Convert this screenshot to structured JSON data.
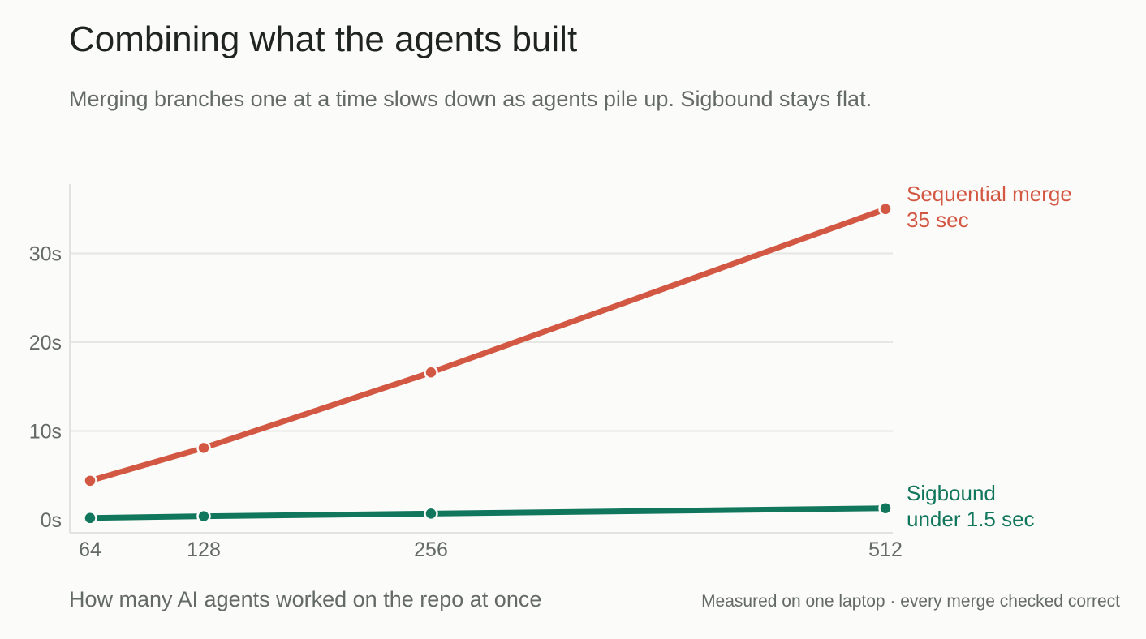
{
  "header": {
    "title": "Combining what the agents built",
    "subtitle": "Merging branches one at a time slows down as agents pile up. Sigbound stays flat."
  },
  "footer": {
    "xlabel": "How many AI agents worked on the repo at once",
    "note": "Measured on one laptop · every merge checked correct"
  },
  "chart_data": {
    "type": "line",
    "title": "Combining what the agents built",
    "subtitle": "Merging branches one at a time slows down as agents pile up. Sigbound stays flat.",
    "xlabel": "How many AI agents worked on the repo at once",
    "ylabel": "",
    "x": [
      64,
      128,
      256,
      512
    ],
    "x_ticks": [
      {
        "value": 64,
        "label": "64"
      },
      {
        "value": 128,
        "label": "128"
      },
      {
        "value": 256,
        "label": "256"
      },
      {
        "value": 512,
        "label": "512"
      }
    ],
    "y_ticks": [
      {
        "value": 0,
        "label": "0s"
      },
      {
        "value": 10,
        "label": "10s"
      },
      {
        "value": 20,
        "label": "20s"
      },
      {
        "value": 30,
        "label": "30s"
      }
    ],
    "xlim": [
      64,
      512
    ],
    "ylim": [
      0,
      39
    ],
    "grid": true,
    "series": [
      {
        "name": "Sequential merge",
        "annotation": "35 sec",
        "color": "#d35843",
        "values": [
          4.4,
          8.1,
          16.6,
          35.0
        ]
      },
      {
        "name": "Sigbound",
        "annotation": "under 1.5 sec",
        "color": "#10765c",
        "values": [
          0.2,
          0.4,
          0.7,
          1.3
        ]
      }
    ]
  }
}
